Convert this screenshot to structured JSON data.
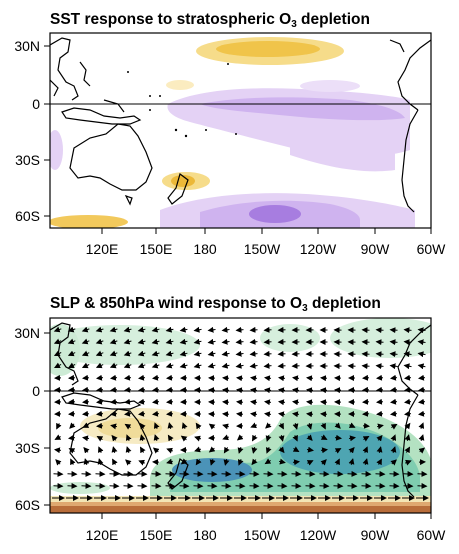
{
  "panel1": {
    "title_main": "SST response to stratospheric O",
    "title_sub": "3",
    "title_tail": " depletion",
    "y_labels": [
      "30N",
      "0",
      "30S",
      "60S"
    ],
    "x_labels": [
      "120E",
      "150E",
      "180",
      "150W",
      "120W",
      "90W",
      "60W"
    ]
  },
  "panel2": {
    "title_main": "SLP & 850hPa wind response to O",
    "title_sub": "3",
    "title_tail": " depletion",
    "y_labels": [
      "30N",
      "0",
      "30S",
      "60S"
    ],
    "x_labels": [
      "120E",
      "150E",
      "180",
      "150W",
      "120W",
      "90W",
      "60W"
    ]
  },
  "colors": {
    "warm_sst": "#f2c44a",
    "cool_sst": "#c9a8ee",
    "cool_sst_strong": "#9c6fd8",
    "slp_low_light": "#a7ddb8",
    "slp_low_mid": "#55b39f",
    "slp_low_strong": "#3d86b3",
    "slp_high_light": "#f3e2a8",
    "slp_high_strong": "#b86d3a"
  }
}
